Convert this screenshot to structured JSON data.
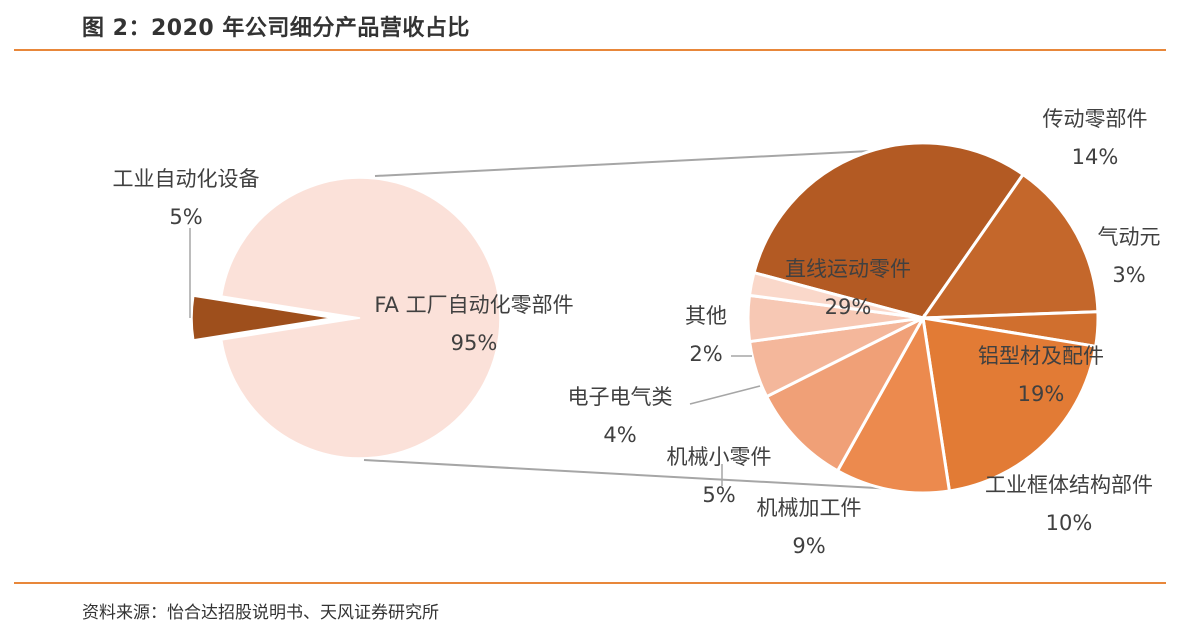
{
  "title": "图 2：2020 年公司细分产品营收占比",
  "source": "资料来源：怡合达招股说明书、天风证券研究所",
  "chart_data": {
    "type": "pie",
    "title": "图 2：2020 年公司细分产品营收占比",
    "main": {
      "slices": [
        {
          "name": "FA 工厂自动化零部件",
          "value": 95,
          "label": "95%",
          "color": "#fbe1d9"
        },
        {
          "name": "工业自动化设备",
          "value": 5,
          "label": "5%",
          "color": "#9e4f1c"
        }
      ]
    },
    "breakdown": {
      "of": "FA 工厂自动化零部件",
      "slices": [
        {
          "name": "直线运动零件",
          "value": 29,
          "label": "29%",
          "color": "#b35a23"
        },
        {
          "name": "传动零部件",
          "value": 14,
          "label": "14%",
          "color": "#c4672b"
        },
        {
          "name": "气动元",
          "value": 3,
          "label": "3%",
          "color": "#d06f2e"
        },
        {
          "name": "铝型材及配件",
          "value": 19,
          "label": "19%",
          "color": "#e27b35"
        },
        {
          "name": "工业框体结构部件",
          "value": 10,
          "label": "10%",
          "color": "#ec8a4e"
        },
        {
          "name": "机械加工件",
          "value": 9,
          "label": "9%",
          "color": "#f0a077"
        },
        {
          "name": "机械小零件",
          "value": 5,
          "label": "5%",
          "color": "#f4b79b"
        },
        {
          "name": "电子电气类",
          "value": 4,
          "label": "4%",
          "color": "#f7c8b4"
        },
        {
          "name": "其他",
          "value": 2,
          "label": "2%",
          "color": "#fad8ca"
        }
      ]
    }
  }
}
